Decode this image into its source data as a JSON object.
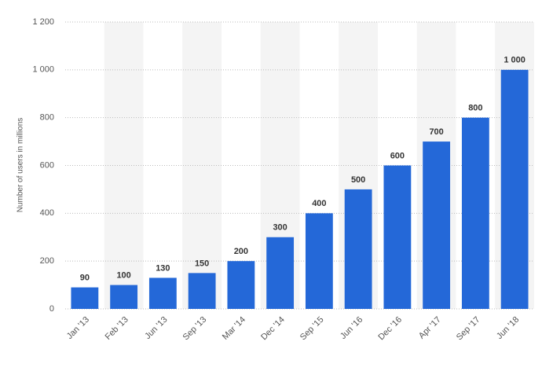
{
  "chart_data": {
    "type": "bar",
    "y_label": "Number of users in millions",
    "categories": [
      "Jan '13",
      "Feb '13",
      "Jun '13",
      "Sep '13",
      "Mar '14",
      "Dec '14",
      "Sep '15",
      "Jun '16",
      "Dec '16",
      "Apr '17",
      "Sep '17",
      "Jun '18"
    ],
    "values": [
      90,
      100,
      130,
      150,
      200,
      300,
      400,
      500,
      600,
      700,
      800,
      1000
    ],
    "value_labels": [
      "90",
      "100",
      "130",
      "150",
      "200",
      "300",
      "400",
      "500",
      "600",
      "700",
      "800",
      "1 000"
    ],
    "color": "#2468d8",
    "ylim": [
      0,
      1200
    ],
    "yticks": [
      0,
      200,
      400,
      600,
      800,
      {
        "value": 1000,
        "label": "1 000"
      },
      {
        "value": 1200,
        "label": "1 200"
      }
    ],
    "grid": true
  }
}
